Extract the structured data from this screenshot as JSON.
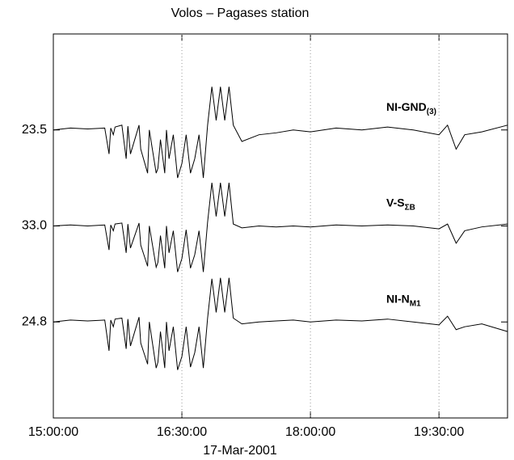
{
  "chart_data": {
    "type": "line",
    "title": "Volos – Pagases station",
    "xlabel": "17-Mar-2001",
    "x": [
      15.0,
      15.2,
      15.4,
      15.6,
      15.65,
      15.67,
      15.7,
      15.72,
      15.8,
      15.85,
      15.87,
      15.9,
      16.0,
      16.02,
      16.1,
      16.12,
      16.2,
      16.22,
      16.25,
      16.3,
      16.32,
      16.35,
      16.4,
      16.45,
      16.5,
      16.55,
      16.6,
      16.65,
      16.7,
      16.75,
      16.8,
      16.85,
      16.9,
      16.95,
      17.0,
      17.05,
      17.1,
      17.2,
      17.4,
      17.6,
      17.8,
      18.0,
      18.3,
      18.6,
      18.9,
      19.2,
      19.5,
      19.6,
      19.7,
      19.8,
      20.0,
      20.3
    ],
    "series": [
      {
        "name": "NI-GND",
        "name_subscript": "(3)",
        "color": "#000000",
        "values": [
          3.0,
          3.02,
          3.01,
          3.02,
          2.75,
          3.02,
          2.95,
          3.03,
          3.05,
          2.7,
          3.04,
          2.75,
          3.05,
          2.8,
          2.55,
          3.0,
          2.55,
          2.6,
          2.9,
          2.55,
          3.0,
          2.7,
          2.95,
          2.5,
          2.65,
          2.95,
          2.55,
          2.7,
          2.95,
          2.5,
          3.05,
          3.45,
          3.1,
          3.45,
          3.1,
          3.45,
          3.05,
          2.88,
          2.95,
          2.97,
          3.0,
          2.98,
          3.02,
          3.0,
          3.03,
          3.0,
          2.95,
          3.05,
          2.8,
          2.95,
          2.98,
          3.05
        ]
      },
      {
        "name": "V-S",
        "name_subscript": "ΣB",
        "color": "#000000",
        "values": [
          2.0,
          2.01,
          2.0,
          2.01,
          1.75,
          2.01,
          1.95,
          2.02,
          2.03,
          1.72,
          2.02,
          1.77,
          2.03,
          1.8,
          1.58,
          2.0,
          1.57,
          1.62,
          1.9,
          1.56,
          2.0,
          1.72,
          1.95,
          1.52,
          1.66,
          1.96,
          1.56,
          1.7,
          1.95,
          1.52,
          2.04,
          2.45,
          2.1,
          2.45,
          2.1,
          2.45,
          2.02,
          1.98,
          2.0,
          1.99,
          2.0,
          1.99,
          2.01,
          2.0,
          2.01,
          2.0,
          1.97,
          2.02,
          1.82,
          1.95,
          1.99,
          2.02
        ]
      },
      {
        "name": "NI-N",
        "name_subscript": "M1",
        "color": "#000000",
        "values": [
          1.0,
          1.02,
          1.01,
          1.02,
          0.7,
          1.02,
          0.95,
          1.03,
          1.04,
          0.72,
          1.03,
          0.75,
          1.05,
          0.78,
          0.56,
          1.0,
          0.52,
          0.58,
          0.9,
          0.52,
          1.0,
          0.7,
          0.95,
          0.5,
          0.64,
          0.95,
          0.53,
          0.68,
          0.95,
          0.52,
          1.04,
          1.45,
          1.1,
          1.46,
          1.1,
          1.46,
          1.04,
          0.98,
          1.0,
          1.01,
          1.02,
          1.0,
          1.02,
          1.01,
          1.03,
          1.0,
          0.97,
          1.06,
          0.92,
          0.95,
          0.98,
          0.9
        ]
      }
    ],
    "xlim": [
      15.0,
      20.3
    ],
    "xticks": [
      {
        "value": 15.0,
        "label": "15:00:00"
      },
      {
        "value": 16.5,
        "label": "16:30:00"
      },
      {
        "value": 18.0,
        "label": "18:00:00"
      },
      {
        "value": 19.5,
        "label": "19:30:00"
      }
    ],
    "ylim": [
      0,
      4
    ],
    "yticks": [
      {
        "value": 3,
        "label": "23.5"
      },
      {
        "value": 2,
        "label": "33.0"
      },
      {
        "value": 1,
        "label": "24.8"
      }
    ],
    "grid": "x"
  }
}
